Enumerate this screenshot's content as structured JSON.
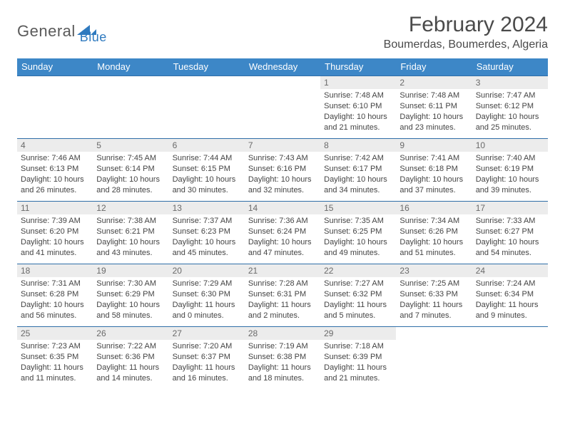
{
  "brand": {
    "name1": "General",
    "name2": "Blue"
  },
  "title": "February 2024",
  "location": "Boumerdas, Boumerdes, Algeria",
  "colors": {
    "header_bg": "#3d87c7",
    "header_text": "#ffffff",
    "rule": "#2f6ea8",
    "dayhead_bg": "#ececec",
    "dayhead_text": "#6a6a6a",
    "body_text": "#444444",
    "brand_gray": "#5a5a5a",
    "brand_blue": "#2f7abf",
    "page_bg": "#ffffff"
  },
  "weekdays": [
    "Sunday",
    "Monday",
    "Tuesday",
    "Wednesday",
    "Thursday",
    "Friday",
    "Saturday"
  ],
  "weeks": [
    [
      null,
      null,
      null,
      null,
      {
        "n": "1",
        "sunrise": "7:48 AM",
        "sunset": "6:10 PM",
        "daylight": "10 hours and 21 minutes."
      },
      {
        "n": "2",
        "sunrise": "7:48 AM",
        "sunset": "6:11 PM",
        "daylight": "10 hours and 23 minutes."
      },
      {
        "n": "3",
        "sunrise": "7:47 AM",
        "sunset": "6:12 PM",
        "daylight": "10 hours and 25 minutes."
      }
    ],
    [
      {
        "n": "4",
        "sunrise": "7:46 AM",
        "sunset": "6:13 PM",
        "daylight": "10 hours and 26 minutes."
      },
      {
        "n": "5",
        "sunrise": "7:45 AM",
        "sunset": "6:14 PM",
        "daylight": "10 hours and 28 minutes."
      },
      {
        "n": "6",
        "sunrise": "7:44 AM",
        "sunset": "6:15 PM",
        "daylight": "10 hours and 30 minutes."
      },
      {
        "n": "7",
        "sunrise": "7:43 AM",
        "sunset": "6:16 PM",
        "daylight": "10 hours and 32 minutes."
      },
      {
        "n": "8",
        "sunrise": "7:42 AM",
        "sunset": "6:17 PM",
        "daylight": "10 hours and 34 minutes."
      },
      {
        "n": "9",
        "sunrise": "7:41 AM",
        "sunset": "6:18 PM",
        "daylight": "10 hours and 37 minutes."
      },
      {
        "n": "10",
        "sunrise": "7:40 AM",
        "sunset": "6:19 PM",
        "daylight": "10 hours and 39 minutes."
      }
    ],
    [
      {
        "n": "11",
        "sunrise": "7:39 AM",
        "sunset": "6:20 PM",
        "daylight": "10 hours and 41 minutes."
      },
      {
        "n": "12",
        "sunrise": "7:38 AM",
        "sunset": "6:21 PM",
        "daylight": "10 hours and 43 minutes."
      },
      {
        "n": "13",
        "sunrise": "7:37 AM",
        "sunset": "6:23 PM",
        "daylight": "10 hours and 45 minutes."
      },
      {
        "n": "14",
        "sunrise": "7:36 AM",
        "sunset": "6:24 PM",
        "daylight": "10 hours and 47 minutes."
      },
      {
        "n": "15",
        "sunrise": "7:35 AM",
        "sunset": "6:25 PM",
        "daylight": "10 hours and 49 minutes."
      },
      {
        "n": "16",
        "sunrise": "7:34 AM",
        "sunset": "6:26 PM",
        "daylight": "10 hours and 51 minutes."
      },
      {
        "n": "17",
        "sunrise": "7:33 AM",
        "sunset": "6:27 PM",
        "daylight": "10 hours and 54 minutes."
      }
    ],
    [
      {
        "n": "18",
        "sunrise": "7:31 AM",
        "sunset": "6:28 PM",
        "daylight": "10 hours and 56 minutes."
      },
      {
        "n": "19",
        "sunrise": "7:30 AM",
        "sunset": "6:29 PM",
        "daylight": "10 hours and 58 minutes."
      },
      {
        "n": "20",
        "sunrise": "7:29 AM",
        "sunset": "6:30 PM",
        "daylight": "11 hours and 0 minutes."
      },
      {
        "n": "21",
        "sunrise": "7:28 AM",
        "sunset": "6:31 PM",
        "daylight": "11 hours and 2 minutes."
      },
      {
        "n": "22",
        "sunrise": "7:27 AM",
        "sunset": "6:32 PM",
        "daylight": "11 hours and 5 minutes."
      },
      {
        "n": "23",
        "sunrise": "7:25 AM",
        "sunset": "6:33 PM",
        "daylight": "11 hours and 7 minutes."
      },
      {
        "n": "24",
        "sunrise": "7:24 AM",
        "sunset": "6:34 PM",
        "daylight": "11 hours and 9 minutes."
      }
    ],
    [
      {
        "n": "25",
        "sunrise": "7:23 AM",
        "sunset": "6:35 PM",
        "daylight": "11 hours and 11 minutes."
      },
      {
        "n": "26",
        "sunrise": "7:22 AM",
        "sunset": "6:36 PM",
        "daylight": "11 hours and 14 minutes."
      },
      {
        "n": "27",
        "sunrise": "7:20 AM",
        "sunset": "6:37 PM",
        "daylight": "11 hours and 16 minutes."
      },
      {
        "n": "28",
        "sunrise": "7:19 AM",
        "sunset": "6:38 PM",
        "daylight": "11 hours and 18 minutes."
      },
      {
        "n": "29",
        "sunrise": "7:18 AM",
        "sunset": "6:39 PM",
        "daylight": "11 hours and 21 minutes."
      },
      null,
      null
    ]
  ],
  "labels": {
    "sunrise": "Sunrise:",
    "sunset": "Sunset:",
    "daylight": "Daylight:"
  }
}
